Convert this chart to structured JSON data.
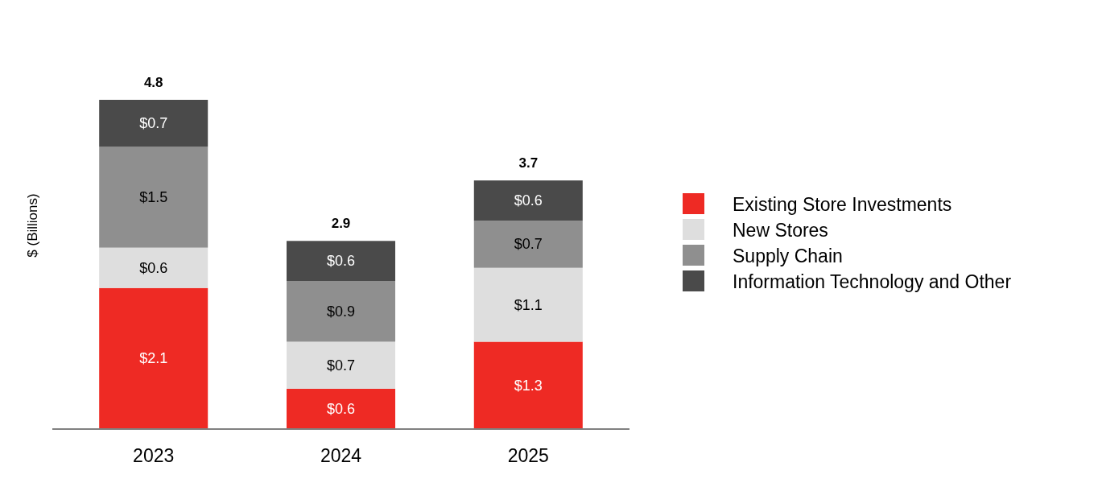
{
  "chart_data": {
    "type": "bar",
    "stacked": true,
    "ylabel": "$ (Billions)",
    "categories": [
      "2023",
      "2024",
      "2025"
    ],
    "series": [
      {
        "name": "Existing Store Investments",
        "color": "#ee2a24",
        "values": [
          2.1,
          0.6,
          1.3
        ],
        "value_labels": [
          "$2.1",
          "$0.6",
          "$1.3"
        ]
      },
      {
        "name": "New Stores",
        "color": "#dedede",
        "values": [
          0.6,
          0.7,
          1.1
        ],
        "value_labels": [
          "$0.6",
          "$0.7",
          "$1.1"
        ]
      },
      {
        "name": "Supply Chain",
        "color": "#8f8f8f",
        "values": [
          1.5,
          0.9,
          0.7
        ],
        "value_labels": [
          "$1.5",
          "$0.9",
          "$0.7"
        ]
      },
      {
        "name": "Information Technology and Other",
        "color": "#4a4a4a",
        "values": [
          0.7,
          0.6,
          0.6
        ],
        "value_labels": [
          "$0.7",
          "$0.6",
          "$0.6"
        ]
      }
    ],
    "totals": [
      "4.8",
      "2.9",
      "3.7"
    ],
    "legend": "right"
  }
}
